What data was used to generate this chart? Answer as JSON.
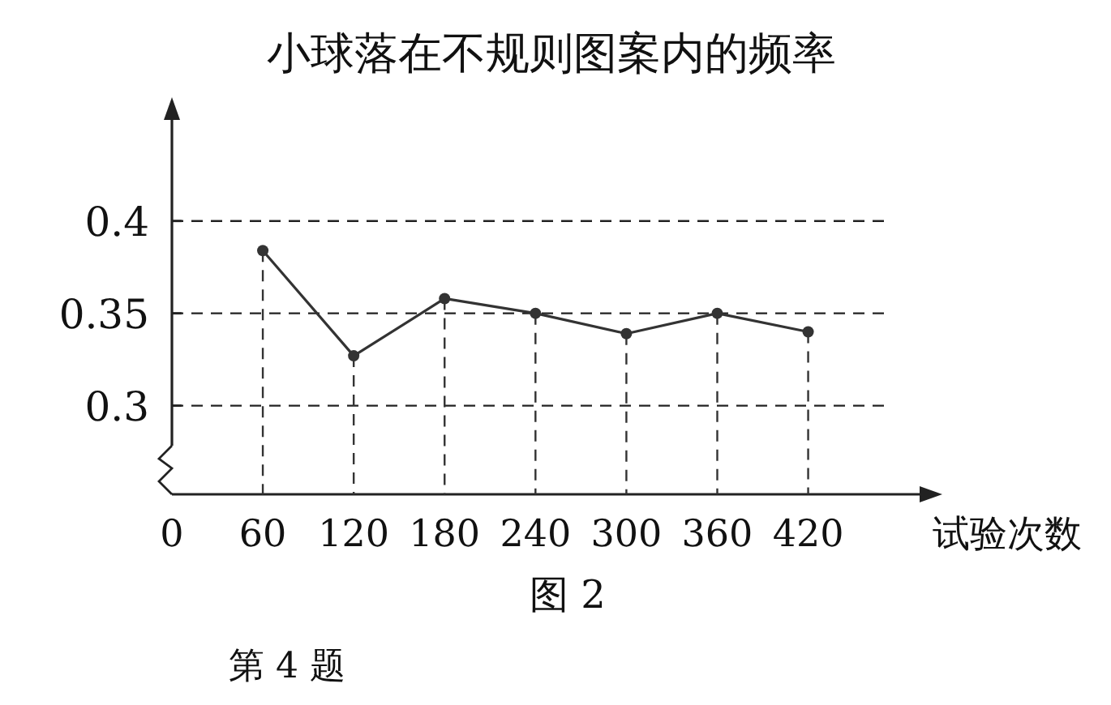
{
  "chart_data": {
    "type": "line",
    "title": "小球落在不规则图案内的频率",
    "xlabel": "试验次数",
    "x": [
      60,
      120,
      180,
      240,
      300,
      360,
      420
    ],
    "series": [
      {
        "color": "#333333",
        "values": [
          0.384,
          0.327,
          0.358,
          0.35,
          0.339,
          0.35,
          0.34
        ]
      },
      {
        "type": "lollipop",
        "color": "#333333",
        "line_style": "dashed",
        "marker": "circle",
        "values": [
          0.384,
          0.327,
          0.358,
          0.35,
          0.339,
          0.35,
          0.34
        ]
      }
    ],
    "xlim": [
      0,
      500
    ],
    "xticks": [
      0,
      60,
      120,
      180,
      240,
      300,
      360,
      420
    ],
    "ylim": [
      0.252,
      0.46
    ],
    "yticks": [
      0.3,
      0.35,
      0.4
    ],
    "grid": "y",
    "line_style": "solid",
    "annotations": [
      "图 2",
      "第 4 题"
    ]
  }
}
